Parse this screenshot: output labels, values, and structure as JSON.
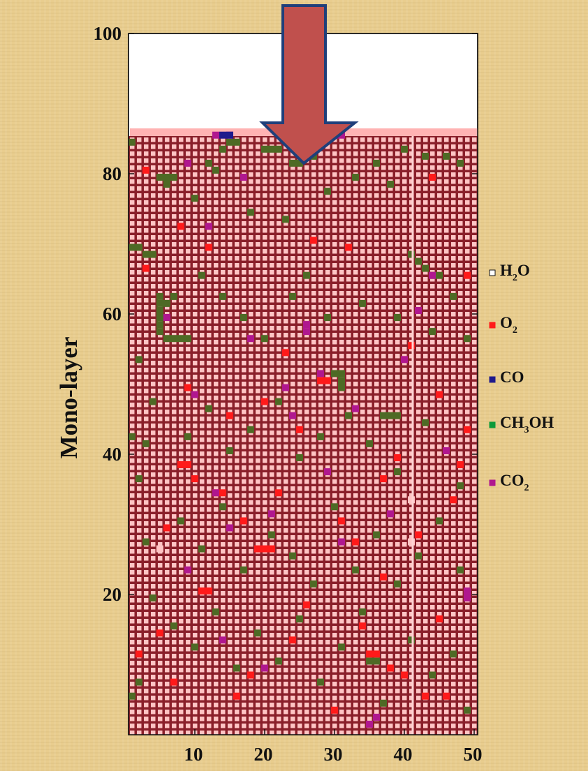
{
  "chart_data": {
    "type": "heatmap",
    "title": "",
    "ylabel": "Mono-layer",
    "xlabel": "",
    "xlim": [
      1,
      50
    ],
    "ylim": [
      0,
      100
    ],
    "x_ticks": [
      10,
      20,
      30,
      40,
      50
    ],
    "y_ticks": [
      20,
      40,
      60,
      80,
      100
    ],
    "grid": false,
    "columns": 50,
    "filled_layers": 86,
    "legend_position": "right",
    "legend": [
      {
        "key": "H2O",
        "base": "H",
        "sub": "2",
        "rest": "O",
        "color": "#ffffff"
      },
      {
        "key": "O2",
        "base": "O",
        "sub": "2",
        "rest": "",
        "color": "#ff1a1a"
      },
      {
        "key": "CO",
        "base": "CO",
        "sub": "",
        "rest": "",
        "color": "#1f1a8c"
      },
      {
        "key": "CH3OH",
        "base": "CH",
        "sub": "3",
        "rest": "OH",
        "color": "#0e9a3a"
      },
      {
        "key": "CO2",
        "base": "CO",
        "sub": "2",
        "rest": "",
        "color": "#b0178f"
      }
    ],
    "colors": {
      "grid_cell": "#ffc4c4",
      "grid_line": "#8a1f2a",
      "water_green": "#4e6a25",
      "surface_band": "#ffb3b3",
      "arrow_fill": "#c0504d",
      "arrow_stroke": "#1f3f7a"
    },
    "sample_cells": {
      "O2": [
        [
          3,
          81
        ],
        [
          8,
          73
        ],
        [
          8,
          39
        ],
        [
          9,
          39
        ],
        [
          10,
          37
        ],
        [
          13,
          35
        ],
        [
          14,
          35
        ],
        [
          17,
          31
        ],
        [
          19,
          27
        ],
        [
          20,
          27
        ],
        [
          21,
          27
        ],
        [
          22,
          35
        ],
        [
          25,
          44
        ],
        [
          28,
          51
        ],
        [
          29,
          51
        ],
        [
          31,
          31
        ],
        [
          33,
          28
        ],
        [
          35,
          12
        ],
        [
          36,
          12
        ],
        [
          38,
          10
        ],
        [
          39,
          40
        ],
        [
          42,
          29
        ],
        [
          45,
          17
        ],
        [
          47,
          34
        ],
        [
          48,
          39
        ],
        [
          49,
          44
        ],
        [
          5,
          15
        ],
        [
          7,
          8
        ],
        [
          11,
          21
        ],
        [
          12,
          21
        ],
        [
          16,
          6
        ],
        [
          18,
          9
        ],
        [
          24,
          14
        ],
        [
          26,
          19
        ],
        [
          30,
          4
        ],
        [
          34,
          16
        ],
        [
          37,
          23
        ],
        [
          40,
          9
        ],
        [
          43,
          6
        ],
        [
          46,
          6
        ],
        [
          2,
          12
        ],
        [
          6,
          30
        ],
        [
          9,
          50
        ],
        [
          15,
          46
        ],
        [
          23,
          55
        ],
        [
          27,
          71
        ],
        [
          32,
          70
        ],
        [
          41,
          56
        ],
        [
          44,
          80
        ],
        [
          49,
          66
        ],
        [
          3,
          67
        ],
        [
          12,
          70
        ],
        [
          20,
          48
        ],
        [
          37,
          37
        ],
        [
          45,
          49
        ]
      ],
      "green": [
        [
          2,
          70
        ],
        [
          3,
          69
        ],
        [
          4,
          69
        ],
        [
          5,
          80
        ],
        [
          6,
          80
        ],
        [
          7,
          80
        ],
        [
          6,
          79
        ],
        [
          5,
          63
        ],
        [
          5,
          62
        ],
        [
          5,
          61
        ],
        [
          5,
          60
        ],
        [
          5,
          59
        ],
        [
          5,
          58
        ],
        [
          6,
          57
        ],
        [
          7,
          57
        ],
        [
          8,
          57
        ],
        [
          9,
          57
        ],
        [
          6,
          62
        ],
        [
          7,
          63
        ],
        [
          14,
          84
        ],
        [
          15,
          85
        ],
        [
          16,
          85
        ],
        [
          20,
          84
        ],
        [
          21,
          84
        ],
        [
          22,
          84
        ],
        [
          24,
          82
        ],
        [
          25,
          82
        ],
        [
          26,
          83
        ],
        [
          27,
          83
        ],
        [
          30,
          52
        ],
        [
          31,
          52
        ],
        [
          31,
          51
        ],
        [
          31,
          50
        ],
        [
          37,
          46
        ],
        [
          38,
          46
        ],
        [
          39,
          46
        ],
        [
          41,
          69
        ],
        [
          42,
          68
        ],
        [
          43,
          67
        ],
        [
          44,
          66
        ],
        [
          45,
          66
        ],
        [
          12,
          82
        ],
        [
          13,
          81
        ],
        [
          10,
          77
        ],
        [
          18,
          75
        ],
        [
          23,
          74
        ],
        [
          29,
          78
        ],
        [
          33,
          80
        ],
        [
          36,
          82
        ],
        [
          38,
          79
        ],
        [
          40,
          84
        ],
        [
          43,
          83
        ],
        [
          46,
          83
        ],
        [
          48,
          82
        ],
        [
          11,
          66
        ],
        [
          14,
          63
        ],
        [
          17,
          60
        ],
        [
          20,
          57
        ],
        [
          24,
          63
        ],
        [
          26,
          66
        ],
        [
          29,
          60
        ],
        [
          34,
          62
        ],
        [
          39,
          60
        ],
        [
          44,
          58
        ],
        [
          47,
          63
        ],
        [
          49,
          57
        ],
        [
          9,
          43
        ],
        [
          12,
          47
        ],
        [
          15,
          41
        ],
        [
          18,
          44
        ],
        [
          22,
          48
        ],
        [
          25,
          40
        ],
        [
          28,
          43
        ],
        [
          32,
          46
        ],
        [
          35,
          42
        ],
        [
          39,
          38
        ],
        [
          43,
          45
        ],
        [
          46,
          41
        ],
        [
          48,
          36
        ],
        [
          8,
          31
        ],
        [
          11,
          27
        ],
        [
          14,
          33
        ],
        [
          17,
          24
        ],
        [
          21,
          29
        ],
        [
          24,
          26
        ],
        [
          27,
          22
        ],
        [
          30,
          33
        ],
        [
          33,
          24
        ],
        [
          36,
          29
        ],
        [
          39,
          22
        ],
        [
          42,
          26
        ],
        [
          45,
          31
        ],
        [
          48,
          24
        ],
        [
          4,
          20
        ],
        [
          7,
          16
        ],
        [
          10,
          13
        ],
        [
          13,
          18
        ],
        [
          16,
          10
        ],
        [
          19,
          15
        ],
        [
          22,
          11
        ],
        [
          25,
          17
        ],
        [
          28,
          8
        ],
        [
          31,
          13
        ],
        [
          34,
          18
        ],
        [
          35,
          11
        ],
        [
          36,
          11
        ],
        [
          37,
          5
        ],
        [
          41,
          14
        ],
        [
          44,
          9
        ],
        [
          47,
          12
        ],
        [
          49,
          4
        ],
        [
          2,
          37
        ],
        [
          3,
          42
        ],
        [
          4,
          48
        ],
        [
          2,
          54
        ],
        [
          3,
          28
        ],
        [
          2,
          8
        ],
        [
          1,
          6
        ],
        [
          1,
          43
        ],
        [
          1,
          70
        ],
        [
          1,
          85
        ]
      ],
      "CO2": [
        [
          13,
          86
        ],
        [
          15,
          86
        ],
        [
          30,
          86
        ],
        [
          31,
          86
        ],
        [
          9,
          82
        ],
        [
          12,
          73
        ],
        [
          17,
          80
        ],
        [
          26,
          58
        ],
        [
          26,
          59
        ],
        [
          28,
          52
        ],
        [
          33,
          47
        ],
        [
          40,
          54
        ],
        [
          44,
          66
        ],
        [
          49,
          20
        ],
        [
          49,
          21
        ],
        [
          13,
          35
        ],
        [
          15,
          30
        ],
        [
          21,
          32
        ],
        [
          24,
          46
        ],
        [
          18,
          57
        ],
        [
          10,
          49
        ],
        [
          6,
          60
        ],
        [
          29,
          38
        ],
        [
          35,
          2
        ],
        [
          36,
          3
        ],
        [
          38,
          32
        ],
        [
          42,
          61
        ],
        [
          46,
          41
        ],
        [
          9,
          24
        ],
        [
          14,
          14
        ],
        [
          20,
          10
        ],
        [
          23,
          50
        ],
        [
          31,
          28
        ]
      ],
      "CO": [
        [
          14,
          86
        ],
        [
          15,
          86
        ]
      ],
      "water_gap": [
        [
          5,
          27
        ],
        [
          41,
          34
        ],
        [
          41,
          28
        ]
      ]
    }
  }
}
